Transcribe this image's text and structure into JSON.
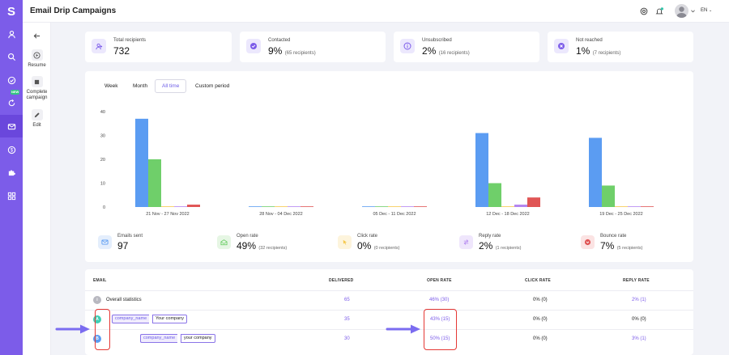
{
  "app": {
    "logo": "S",
    "title": "Email Drip Campaigns",
    "language": "EN"
  },
  "rail": {
    "new_badge": "NEW"
  },
  "actions": [
    {
      "label": "Resume"
    },
    {
      "label": "Complete campaign"
    },
    {
      "label": "Edit"
    }
  ],
  "stats": [
    {
      "label": "Total recipients",
      "value": "732",
      "sub": ""
    },
    {
      "label": "Contacted",
      "value": "9%",
      "sub": "(65 recipients)"
    },
    {
      "label": "Unsubscribed",
      "value": "2%",
      "sub": "(16 recipients)"
    },
    {
      "label": "Not reached",
      "value": "1%",
      "sub": "(7 recipients)"
    }
  ],
  "tabs": [
    "Week",
    "Month",
    "All time",
    "Custom period"
  ],
  "active_tab": "All time",
  "chart_data": {
    "type": "bar",
    "categories": [
      "21 Nov - 27 Nov 2022",
      "28 Nov - 04 Dec 2022",
      "05 Dec - 11 Dec 2022",
      "12 Dec - 18 Dec 2022",
      "19 Dec - 25 Dec 2022"
    ],
    "series": [
      {
        "name": "Emails sent",
        "color": "#5b9cf2",
        "values": [
          37,
          0,
          0,
          31,
          29
        ]
      },
      {
        "name": "Open rate",
        "color": "#6fcf6a",
        "values": [
          20,
          0,
          0,
          10,
          9
        ]
      },
      {
        "name": "Click rate",
        "color": "#f5c84c",
        "values": [
          0,
          0,
          0,
          0,
          0
        ]
      },
      {
        "name": "Reply rate",
        "color": "#b385f0",
        "values": [
          0,
          0,
          0,
          1,
          0
        ]
      },
      {
        "name": "Bounce rate",
        "color": "#e05555",
        "values": [
          1,
          0,
          0,
          4,
          0
        ]
      }
    ],
    "yticks": [
      0,
      10,
      20,
      30,
      40
    ],
    "ylim": [
      0,
      40
    ],
    "grid": false
  },
  "metrics": [
    {
      "label": "Emails sent",
      "value": "97",
      "sub": ""
    },
    {
      "label": "Open rate",
      "value": "49%",
      "sub": "(32 recipients)"
    },
    {
      "label": "Click rate",
      "value": "0%",
      "sub": "(0 recipients)"
    },
    {
      "label": "Reply rate",
      "value": "2%",
      "sub": "(1 recipients)"
    },
    {
      "label": "Bounce rate",
      "value": "7%",
      "sub": "(5 recipients)"
    }
  ],
  "table": {
    "headers": {
      "email": "EMAIL",
      "delivered": "DELIVERED",
      "open": "OPEN RATE",
      "click": "CLICK RATE",
      "reply": "REPLY RATE"
    },
    "overall": {
      "badge": "i",
      "label": "Overall statistics",
      "delivered": "65",
      "open": "46% (30)",
      "click": "0% (0)",
      "reply": "2% (1)"
    },
    "rows": [
      {
        "badge": "A",
        "var": "company_name",
        "text": "Your company",
        "delivered": "35",
        "open": "43% (15)",
        "click": "0% (0)",
        "reply": "0% (0)"
      },
      {
        "badge": "B",
        "var": "company_name",
        "text": "your company",
        "delivered": "30",
        "open": "50% (15)",
        "click": "0% (0)",
        "reply": "3% (1)"
      }
    ]
  },
  "colors": {
    "accent": "#7c5ce9",
    "annotation_red": "#e53935",
    "annotation_arrow": "#7b6cf0"
  }
}
